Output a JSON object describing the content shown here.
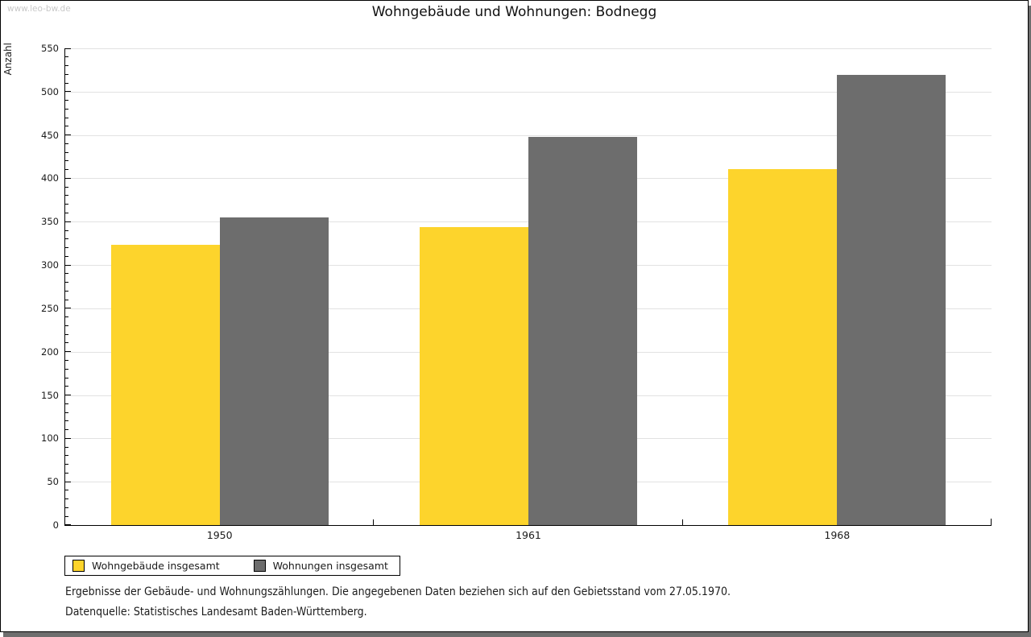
{
  "page": {
    "watermark": "www.leo-bw.de",
    "footnote_line1": "Ergebnisse der Gebäude- und Wohnungszählungen. Die angegebenen Daten beziehen sich auf den Gebietsstand vom 27.05.1970.",
    "footnote_line2": "Datenquelle: Statistisches Landesamt Baden-Württemberg."
  },
  "chart_data": {
    "type": "bar",
    "title": "Wohngebäude und Wohnungen: Bodnegg",
    "categories": [
      "1950",
      "1961",
      "1968"
    ],
    "series": [
      {
        "name": "Wohngebäude insgesamt",
        "color": "#fdd42c",
        "values": [
          323,
          344,
          411
        ]
      },
      {
        "name": "Wohnungen insgesamt",
        "color": "#6d6d6d",
        "values": [
          355,
          448,
          519
        ]
      }
    ],
    "xlabel": "",
    "ylabel": "Anzahl",
    "ylim": [
      0,
      550
    ],
    "yticks": [
      0,
      50,
      100,
      150,
      200,
      250,
      300,
      350,
      400,
      450,
      500,
      550
    ],
    "yminor_step": 10,
    "grid": true,
    "gridline_color": "#e2e2e2",
    "legend_position": "bottom-left"
  }
}
